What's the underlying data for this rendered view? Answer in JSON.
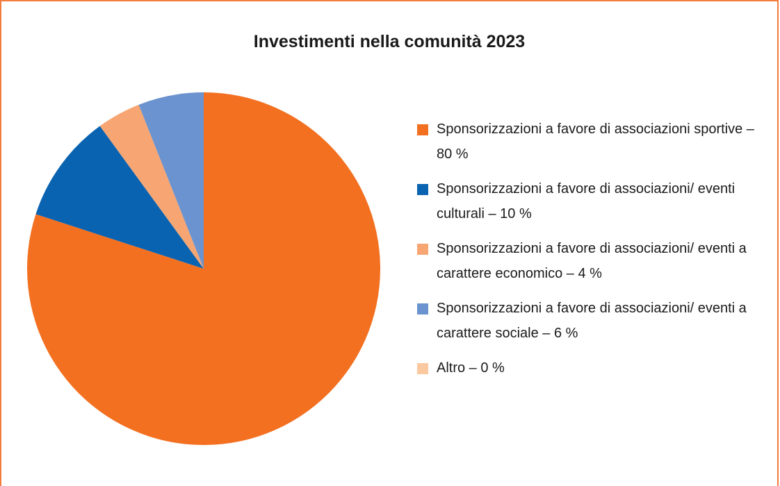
{
  "chart_data": {
    "type": "pie",
    "title": "Investimenti nella comunità 2023",
    "slices": [
      {
        "label": "Sponsorizzazioni a favore di associazioni sportive – 80 %",
        "value": 80,
        "color": "#f37021"
      },
      {
        "label": "Sponsorizzazioni a favore di associazioni/ eventi culturali – 10 %",
        "value": 10,
        "color": "#0a63b0"
      },
      {
        "label": "Sponsorizzazioni a favore di associazioni/ eventi a carattere economico – 4 %",
        "value": 4,
        "color": "#f7a673"
      },
      {
        "label": "Sponsorizzazioni a favore di associazioni/ eventi a carattere sociale – 6 %",
        "value": 6,
        "color": "#6b93cf"
      },
      {
        "label": "Altro – 0 %",
        "value": 0,
        "color": "#fbc9a0"
      }
    ],
    "legend_position": "right"
  }
}
